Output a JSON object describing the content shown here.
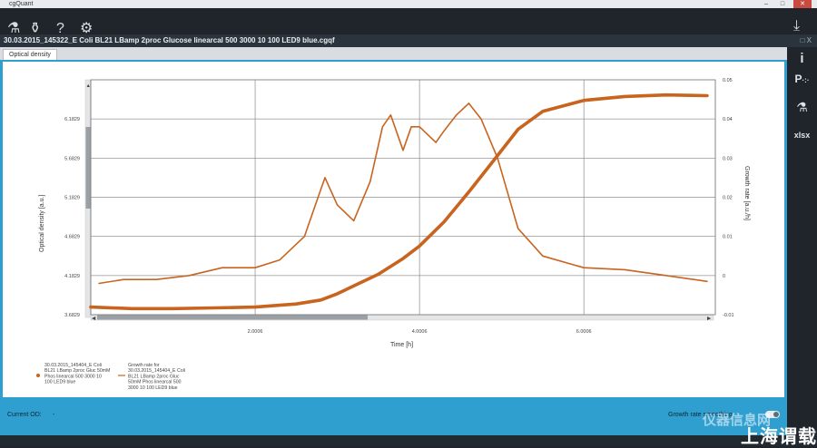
{
  "window": {
    "title": "cgQuant",
    "close_icon": "close-icon"
  },
  "toolbar": {
    "icons": [
      "add-measurement-icon",
      "flask-icon",
      "help-icon",
      "settings-gears-icon"
    ],
    "right_icon": "export-icon"
  },
  "file": {
    "name": "30.03.2015_145322_E Coli BL21 LBamp 2proc Glucose linearcal 500 3000 10 100 LED9 blue.cgqf",
    "controls": "□ X"
  },
  "tabs": [
    {
      "label": "Optical density",
      "active": true
    }
  ],
  "right_panel": {
    "icons": [
      "info-icon",
      "scatter-plot-icon",
      "flask-icon",
      "excel-export-icon"
    ],
    "texts": [
      "i",
      "P",
      "xlsx"
    ]
  },
  "chart_data": {
    "type": "line",
    "xlabel": "Time [h]",
    "ylabel": "Optical density [a.u.]",
    "y2label": "Growth rate [a.u./h]",
    "xlim": [
      0.0,
      7.6
    ],
    "ylim": [
      3.6829,
      6.6829
    ],
    "y2lim": [
      -0.01,
      0.05
    ],
    "x_ticks": [
      "2.0006",
      "4.0006",
      "6.0006"
    ],
    "x_tick_values": [
      2.0,
      4.0,
      6.0
    ],
    "y_ticks": [
      "3.6829",
      "4.1829",
      "4.6829",
      "5.1829",
      "5.6829",
      "6.1829"
    ],
    "y_tick_values": [
      3.6829,
      4.1829,
      4.6829,
      5.1829,
      5.6829,
      6.1829
    ],
    "y2_ticks": [
      "-0.01",
      "0",
      "0.01",
      "0.02",
      "0.03",
      "0.04",
      "0.05"
    ],
    "y2_tick_values": [
      -0.01,
      0,
      0.01,
      0.02,
      0.03,
      0.04,
      0.05
    ],
    "grid": true,
    "series": [
      {
        "name": "30.03.2015_145404_E Coli BL21 LBamp 2proc Gluc 50mM Phos linearcal 500 3000 10 100 LED9 blue",
        "axis": "left",
        "color": "#c8641e",
        "x": [
          0.0,
          0.5,
          1.0,
          1.5,
          2.0,
          2.5,
          2.8,
          3.0,
          3.2,
          3.5,
          3.8,
          4.0,
          4.3,
          4.6,
          4.9,
          5.2,
          5.5,
          6.0,
          6.5,
          7.0,
          7.5
        ],
        "y": [
          3.78,
          3.76,
          3.76,
          3.77,
          3.78,
          3.82,
          3.87,
          3.95,
          4.05,
          4.2,
          4.4,
          4.56,
          4.87,
          5.25,
          5.65,
          6.05,
          6.28,
          6.42,
          6.47,
          6.49,
          6.48
        ]
      },
      {
        "name": "Growth rate for 30.03.2015_145404_E Coli BL21 LBamp 2proc Gluc 50mM Phos linearcal 500 3000 10 100 LED9 blue",
        "axis": "right",
        "color": "#c8641e",
        "x": [
          0.1,
          0.4,
          0.8,
          1.2,
          1.6,
          2.0,
          2.3,
          2.6,
          2.75,
          2.85,
          3.0,
          3.2,
          3.4,
          3.55,
          3.65,
          3.8,
          3.9,
          4.0,
          4.2,
          4.3,
          4.45,
          4.6,
          4.75,
          4.95,
          5.2,
          5.5,
          6.0,
          6.5,
          7.0,
          7.5
        ],
        "y": [
          -0.002,
          -0.001,
          -0.001,
          0.0,
          0.002,
          0.002,
          0.004,
          0.01,
          0.019,
          0.025,
          0.018,
          0.014,
          0.024,
          0.038,
          0.041,
          0.032,
          0.038,
          0.038,
          0.034,
          0.037,
          0.041,
          0.044,
          0.04,
          0.03,
          0.012,
          0.005,
          0.002,
          0.0015,
          0.0,
          -0.0015
        ]
      }
    ],
    "legend_position": "bottom-left"
  },
  "status": {
    "label": "Current OD:",
    "value": "-",
    "toggle_label": "Growth rate smoothing",
    "toggle_on": true
  },
  "watermark": {
    "text": "仪器信息网",
    "text_cn": "上海谓载"
  }
}
